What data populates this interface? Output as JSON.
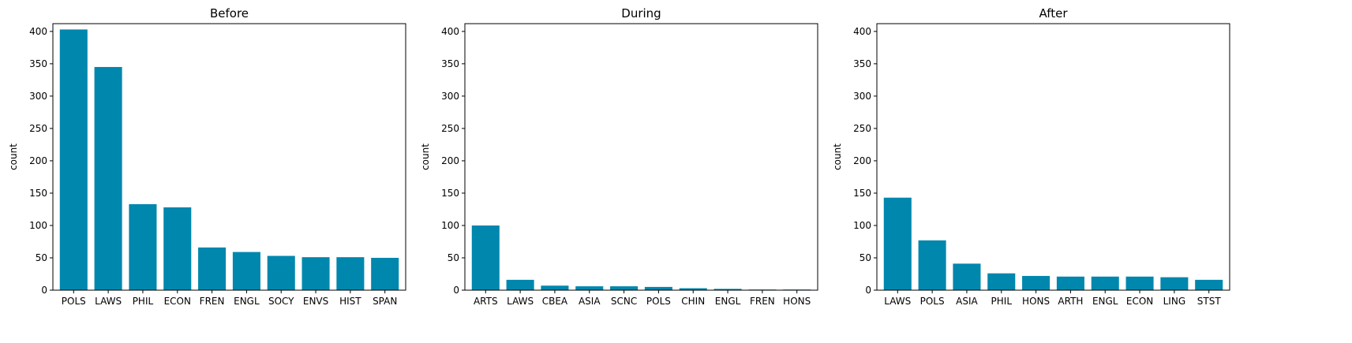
{
  "chart_data": [
    {
      "type": "bar",
      "title": "Before",
      "xlabel": "",
      "ylabel": "count",
      "ylim": [
        0,
        412
      ],
      "yticks": [
        0,
        50,
        100,
        150,
        200,
        250,
        300,
        350,
        400
      ],
      "categories": [
        "POLS",
        "LAWS",
        "PHIL",
        "ECON",
        "FREN",
        "ENGL",
        "SOCY",
        "ENVS",
        "HIST",
        "SPAN"
      ],
      "values": [
        403,
        345,
        133,
        128,
        66,
        59,
        53,
        51,
        51,
        50
      ],
      "color": "#0087ae",
      "grid": false
    },
    {
      "type": "bar",
      "title": "During",
      "xlabel": "",
      "ylabel": "count",
      "ylim": [
        0,
        412
      ],
      "yticks": [
        0,
        50,
        100,
        150,
        200,
        250,
        300,
        350,
        400
      ],
      "categories": [
        "ARTS",
        "LAWS",
        "CBEA",
        "ASIA",
        "SCNC",
        "POLS",
        "CHIN",
        "ENGL",
        "FREN",
        "HONS"
      ],
      "values": [
        100,
        16,
        7,
        6,
        6,
        5,
        3,
        2,
        1,
        1
      ],
      "color": "#0087ae",
      "grid": false
    },
    {
      "type": "bar",
      "title": "After",
      "xlabel": "",
      "ylabel": "count",
      "ylim": [
        0,
        412
      ],
      "yticks": [
        0,
        50,
        100,
        150,
        200,
        250,
        300,
        350,
        400
      ],
      "categories": [
        "LAWS",
        "POLS",
        "ASIA",
        "PHIL",
        "HONS",
        "ARTH",
        "ENGL",
        "ECON",
        "LING",
        "STST"
      ],
      "values": [
        143,
        77,
        41,
        26,
        22,
        21,
        21,
        21,
        20,
        16
      ],
      "color": "#0087ae",
      "grid": false
    }
  ]
}
